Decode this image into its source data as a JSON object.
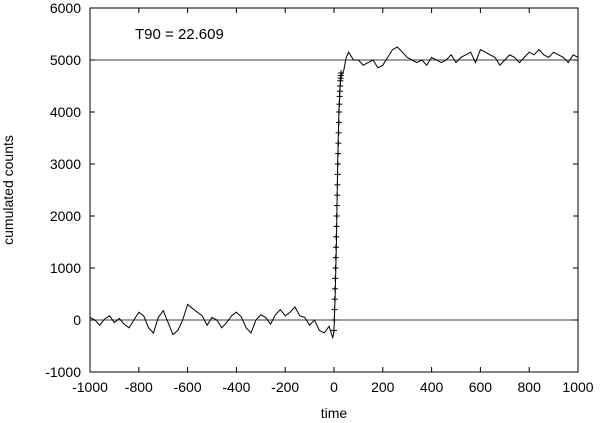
{
  "chart_data": {
    "type": "line",
    "title": "",
    "xlabel": "time",
    "ylabel": "cumulated counts",
    "xlim": [
      -1000,
      1000
    ],
    "ylim": [
      -1000,
      6000
    ],
    "x_ticks": [
      -1000,
      -800,
      -600,
      -400,
      -200,
      0,
      200,
      400,
      600,
      800,
      1000
    ],
    "y_ticks": [
      -1000,
      0,
      1000,
      2000,
      3000,
      4000,
      5000,
      6000
    ],
    "x_tick_labels": [
      "-1000",
      "-800",
      "-600",
      "-400",
      "-200",
      "0",
      "200",
      "400",
      "600",
      "800",
      "1000"
    ],
    "y_tick_labels": [
      "-1000",
      "0",
      "1000",
      "2000",
      "3000",
      "4000",
      "5000",
      "6000"
    ],
    "grid": false,
    "legend": "none",
    "annotation": "T90 = 22.609",
    "reference_lines_y": [
      0,
      5000
    ],
    "series": [
      {
        "style": "line",
        "x": [
          -1000,
          -980,
          -960,
          -940,
          -920,
          -900,
          -880,
          -860,
          -840,
          -820,
          -800,
          -780,
          -760,
          -740,
          -720,
          -700,
          -680,
          -660,
          -640,
          -620,
          -600,
          -580,
          -560,
          -540,
          -520,
          -500,
          -480,
          -460,
          -440,
          -420,
          -400,
          -380,
          -360,
          -340,
          -320,
          -300,
          -280,
          -260,
          -240,
          -220,
          -200,
          -180,
          -160,
          -140,
          -120,
          -100,
          -80,
          -60,
          -40,
          -20,
          -5,
          0,
          5,
          10,
          15,
          20,
          25,
          30,
          40,
          50,
          60,
          80,
          100,
          120,
          140,
          160,
          180,
          200,
          220,
          240,
          260,
          280,
          300,
          320,
          340,
          360,
          380,
          400,
          420,
          440,
          460,
          480,
          500,
          520,
          540,
          560,
          580,
          600,
          620,
          640,
          660,
          680,
          700,
          720,
          740,
          760,
          780,
          800,
          820,
          840,
          860,
          880,
          900,
          920,
          940,
          960,
          980,
          1000
        ],
        "y": [
          50,
          0,
          -100,
          20,
          80,
          -50,
          30,
          -80,
          -150,
          0,
          150,
          80,
          -150,
          -250,
          50,
          180,
          -50,
          -280,
          -200,
          0,
          300,
          220,
          150,
          80,
          -100,
          50,
          0,
          -150,
          -50,
          80,
          150,
          60,
          -150,
          -250,
          0,
          100,
          50,
          -80,
          100,
          200,
          80,
          150,
          250,
          80,
          50,
          -100,
          0,
          -200,
          -250,
          -120,
          -350,
          -200,
          500,
          1500,
          3000,
          4000,
          4500,
          4700,
          4800,
          5050,
          5150,
          5000,
          5000,
          4900,
          4950,
          5000,
          4850,
          4900,
          5050,
          5200,
          5250,
          5150,
          5050,
          5000,
          4950,
          5000,
          4900,
          5050,
          5000,
          4950,
          5000,
          5100,
          4950,
          5050,
          5100,
          5150,
          4950,
          5200,
          5150,
          5100,
          5050,
          4900,
          5000,
          5100,
          5050,
          4950,
          5050,
          5150,
          5100,
          5200,
          5100,
          5050,
          5150,
          5100,
          5050,
          4950,
          5100,
          5050
        ]
      },
      {
        "style": "plus-markers",
        "x": [
          0,
          1,
          2,
          3,
          4,
          5,
          6,
          7,
          8,
          9,
          10,
          11,
          12,
          13,
          14,
          15,
          16,
          17,
          18,
          19,
          20,
          21,
          22,
          23,
          24,
          25,
          26,
          27,
          28,
          29
        ],
        "y": [
          -200,
          0,
          200,
          400,
          600,
          800,
          1000,
          1200,
          1400,
          1600,
          1800,
          2000,
          2200,
          2400,
          2600,
          2800,
          3000,
          3200,
          3400,
          3600,
          3800,
          4000,
          4150,
          4300,
          4400,
          4500,
          4600,
          4650,
          4700,
          4750
        ]
      }
    ]
  }
}
